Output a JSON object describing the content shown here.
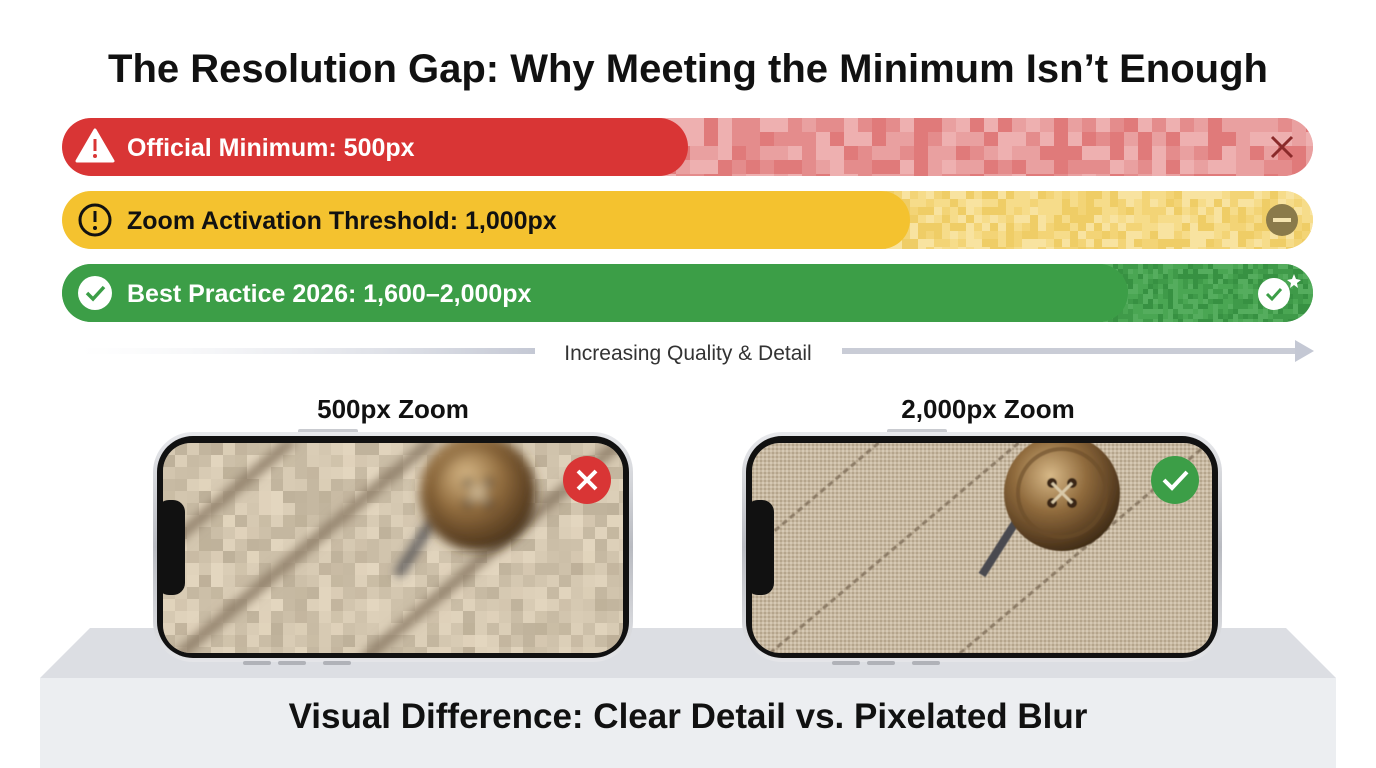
{
  "header": {
    "title": "The Resolution Gap: Why Meeting the Minimum Isn’t Enough"
  },
  "tiers": [
    {
      "label": "Official Minimum: 500px"
    },
    {
      "label": "Zoom Activation Threshold: 1,000px"
    },
    {
      "label": "Best Practice 2026: 1,600–2,000px"
    }
  ],
  "scale": {
    "label": "Increasing Quality & Detail"
  },
  "phones": [
    {
      "label": "500px Zoom"
    },
    {
      "label": "2,000px Zoom"
    }
  ],
  "footer": {
    "caption": "Visual Difference: Clear Detail vs. Pixelated Blur"
  }
}
